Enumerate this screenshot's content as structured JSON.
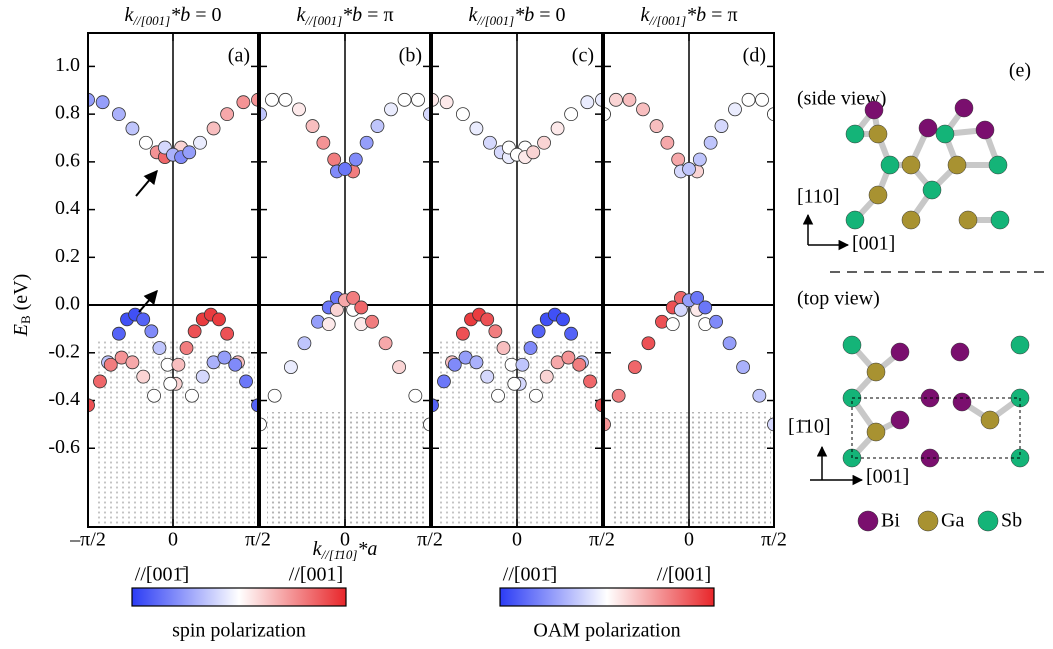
{
  "chart_data": [
    {
      "type": "scatter",
      "label": "(a)",
      "title": {
        "k": "k",
        "sub": "//[001]",
        "star": "*b",
        "eq": "= 0"
      },
      "colorbar": 0,
      "xlim": [
        -1.5708,
        1.5708
      ],
      "xticks": [
        {
          "value": -1.5708,
          "label": "–π/2"
        },
        0,
        {
          "value": 1.5708,
          "label": "π/2"
        }
      ],
      "ylim": [
        -0.93,
        1.14
      ],
      "yticks": [
        -0.6,
        -0.4,
        -0.2,
        {
          "value": 0,
          "label": "0.0"
        },
        0.2,
        0.4,
        0.6,
        0.8,
        {
          "value": 1,
          "label": "1.0"
        }
      ],
      "bands": [
        {
          "x": [
            -1.57,
            -1.3,
            -1.0,
            -0.75,
            -0.5,
            -0.3,
            -0.15,
            0,
            0.15
          ],
          "y": [
            0.86,
            0.85,
            0.8,
            0.74,
            0.68,
            0.64,
            0.62,
            0.63,
            0.66
          ],
          "p": [
            -0.5,
            -0.5,
            -0.4,
            -0.3,
            0,
            0.5,
            0.7,
            0.4,
            0.2
          ]
        },
        {
          "x": [
            -0.15,
            0,
            0.15,
            0.3,
            0.5,
            0.75,
            1.0,
            1.3,
            1.57
          ],
          "y": [
            0.66,
            0.63,
            0.62,
            0.64,
            0.68,
            0.74,
            0.8,
            0.85,
            0.86
          ],
          "p": [
            -0.2,
            -0.4,
            -0.6,
            -0.5,
            -0.1,
            0.3,
            0.4,
            0.5,
            0.5
          ]
        },
        {
          "x": [
            -1.2,
            -1.0,
            -0.85,
            -0.7,
            -0.55,
            -0.4,
            -0.25,
            -0.1,
            0.05
          ],
          "y": [
            -0.24,
            -0.12,
            -0.06,
            -0.04,
            -0.06,
            -0.11,
            -0.18,
            -0.25,
            -0.33
          ],
          "p": [
            -0.3,
            -0.8,
            -0.9,
            -0.9,
            -0.8,
            -0.6,
            -0.3,
            0,
            0.2
          ]
        },
        {
          "x": [
            -0.05,
            0.1,
            0.25,
            0.4,
            0.55,
            0.7,
            0.85,
            1.0,
            1.2
          ],
          "y": [
            -0.33,
            -0.25,
            -0.18,
            -0.11,
            -0.06,
            -0.04,
            -0.06,
            -0.12,
            -0.24
          ],
          "p": [
            0,
            0.3,
            0.6,
            0.8,
            0.9,
            0.9,
            0.9,
            0.8,
            0.3
          ]
        },
        {
          "x": [
            -1.57,
            -1.35,
            -1.15,
            -0.95,
            -0.75,
            -0.55,
            -0.35
          ],
          "y": [
            -0.42,
            -0.32,
            -0.25,
            -0.22,
            -0.24,
            -0.3,
            -0.38
          ],
          "p": [
            0.8,
            0.7,
            0.6,
            0.5,
            0.4,
            0.2,
            0
          ]
        },
        {
          "x": [
            0.35,
            0.55,
            0.75,
            0.95,
            1.15,
            1.35,
            1.57
          ],
          "y": [
            -0.38,
            -0.3,
            -0.24,
            -0.22,
            -0.25,
            -0.32,
            -0.42
          ],
          "p": [
            0,
            -0.2,
            -0.4,
            -0.5,
            -0.6,
            -0.7,
            -0.8
          ]
        }
      ]
    },
    {
      "type": "scatter",
      "label": "(b)",
      "title": {
        "k": "k",
        "sub": "//[001]",
        "star": "*b",
        "eq": "= π"
      },
      "colorbar": 0,
      "xlim": [
        -1.5708,
        1.5708
      ],
      "xticks": [
        0,
        {
          "value": 1.5708,
          "label": "π/2"
        }
      ],
      "ylim": [
        -0.93,
        1.14
      ],
      "yticks": [
        -0.6,
        -0.4,
        -0.2,
        0,
        0.2,
        0.4,
        0.6,
        0.8,
        1
      ],
      "bands": [
        {
          "x": [
            -1.57,
            -1.35,
            -1.1,
            -0.85,
            -0.6,
            -0.4,
            -0.2,
            0,
            0.15
          ],
          "y": [
            0.8,
            0.86,
            0.86,
            0.82,
            0.75,
            0.68,
            0.61,
            0.57,
            0.56
          ],
          "p": [
            -0.3,
            0,
            0,
            0.1,
            0.3,
            0.5,
            0.6,
            0.7,
            0.6
          ]
        },
        {
          "x": [
            -0.15,
            0,
            0.2,
            0.4,
            0.6,
            0.85,
            1.1,
            1.35,
            1.57
          ],
          "y": [
            0.56,
            0.57,
            0.61,
            0.68,
            0.75,
            0.82,
            0.86,
            0.86,
            0.8
          ],
          "p": [
            -0.6,
            -0.7,
            -0.6,
            -0.5,
            -0.3,
            -0.1,
            0,
            0,
            -0.2
          ]
        },
        {
          "x": [
            -1.57,
            -1.3,
            -1.0,
            -0.75,
            -0.5,
            -0.3,
            -0.15,
            0,
            0.15,
            0.3
          ],
          "y": [
            -0.5,
            -0.38,
            -0.26,
            -0.16,
            -0.07,
            -0.01,
            0.03,
            0.02,
            -0.02,
            -0.08
          ],
          "p": [
            0,
            0,
            -0.1,
            -0.3,
            -0.5,
            -0.7,
            -0.7,
            -0.3,
            0,
            0.1
          ]
        },
        {
          "x": [
            -0.3,
            -0.15,
            0,
            0.15,
            0.3,
            0.5,
            0.75,
            1.0,
            1.3,
            1.57
          ],
          "y": [
            -0.08,
            -0.02,
            0.02,
            0.03,
            -0.01,
            -0.07,
            -0.16,
            -0.26,
            -0.38,
            -0.5
          ],
          "p": [
            0.1,
            0.2,
            0.4,
            0.6,
            0.7,
            0.6,
            0.4,
            0.2,
            0,
            0
          ]
        }
      ]
    },
    {
      "type": "scatter",
      "label": "(c)",
      "title": {
        "k": "k",
        "sub": "//[001]",
        "star": "*b",
        "eq": "= 0"
      },
      "colorbar": 1,
      "xlim": [
        -1.5708,
        1.5708
      ],
      "xticks": [
        0,
        {
          "value": 1.5708,
          "label": "π/2"
        }
      ],
      "ylim": [
        -0.93,
        1.14
      ],
      "yticks": [
        -0.6,
        -0.4,
        -0.2,
        0,
        0.2,
        0.4,
        0.6,
        0.8,
        1
      ],
      "bands": [
        {
          "x": [
            -1.57,
            -1.3,
            -1.0,
            -0.75,
            -0.5,
            -0.3,
            -0.15,
            0,
            0.15
          ],
          "y": [
            0.86,
            0.85,
            0.8,
            0.74,
            0.68,
            0.64,
            0.62,
            0.63,
            0.66
          ],
          "p": [
            0.1,
            0.1,
            0,
            -0.1,
            -0.2,
            -0.2,
            -0.1,
            0,
            0
          ]
        },
        {
          "x": [
            -0.15,
            0,
            0.15,
            0.3,
            0.5,
            0.75,
            1.0,
            1.3,
            1.57
          ],
          "y": [
            0.66,
            0.63,
            0.62,
            0.64,
            0.68,
            0.74,
            0.8,
            0.85,
            0.86
          ],
          "p": [
            0,
            0,
            0.1,
            0.2,
            0.2,
            0.1,
            0,
            -0.1,
            -0.1
          ]
        },
        {
          "x": [
            -1.2,
            -1.0,
            -0.85,
            -0.7,
            -0.55,
            -0.4,
            -0.25,
            -0.1,
            0.05
          ],
          "y": [
            -0.24,
            -0.12,
            -0.06,
            -0.04,
            -0.06,
            -0.11,
            -0.18,
            -0.25,
            -0.33
          ],
          "p": [
            0.3,
            0.8,
            0.9,
            0.9,
            0.8,
            0.6,
            0.3,
            0,
            -0.2
          ]
        },
        {
          "x": [
            -0.05,
            0.1,
            0.25,
            0.4,
            0.55,
            0.7,
            0.85,
            1.0,
            1.2
          ],
          "y": [
            -0.33,
            -0.25,
            -0.18,
            -0.11,
            -0.06,
            -0.04,
            -0.06,
            -0.12,
            -0.24
          ],
          "p": [
            0,
            -0.3,
            -0.6,
            -0.8,
            -0.9,
            -0.9,
            -0.9,
            -0.8,
            -0.3
          ]
        },
        {
          "x": [
            -1.57,
            -1.35,
            -1.15,
            -0.95,
            -0.75,
            -0.55,
            -0.35
          ],
          "y": [
            -0.42,
            -0.32,
            -0.25,
            -0.22,
            -0.24,
            -0.3,
            -0.38
          ],
          "p": [
            -0.8,
            -0.7,
            -0.6,
            -0.5,
            -0.4,
            -0.2,
            0
          ]
        },
        {
          "x": [
            0.35,
            0.55,
            0.75,
            0.95,
            1.15,
            1.35,
            1.57
          ],
          "y": [
            -0.38,
            -0.3,
            -0.24,
            -0.22,
            -0.25,
            -0.32,
            -0.42
          ],
          "p": [
            0,
            0.2,
            0.4,
            0.5,
            0.6,
            0.7,
            0.8
          ]
        }
      ]
    },
    {
      "type": "scatter",
      "label": "(d)",
      "title": {
        "k": "k",
        "sub": "//[001]",
        "star": "*b",
        "eq": "= π"
      },
      "colorbar": 1,
      "xlim": [
        -1.5708,
        1.5708
      ],
      "xticks": [
        0,
        {
          "value": 1.5708,
          "label": "π/2"
        }
      ],
      "ylim": [
        -0.93,
        1.14
      ],
      "yticks": [
        -0.6,
        -0.4,
        -0.2,
        0,
        0.2,
        0.4,
        0.6,
        0.8,
        1
      ],
      "bands": [
        {
          "x": [
            -1.57,
            -1.35,
            -1.1,
            -0.85,
            -0.6,
            -0.4,
            -0.2,
            0,
            0.15
          ],
          "y": [
            0.8,
            0.86,
            0.86,
            0.82,
            0.75,
            0.68,
            0.61,
            0.57,
            0.56
          ],
          "p": [
            0,
            0.2,
            0.3,
            0.3,
            0.3,
            0.4,
            0.4,
            0.3,
            0.2
          ]
        },
        {
          "x": [
            -0.15,
            0,
            0.2,
            0.4,
            0.6,
            0.85,
            1.1,
            1.35,
            1.57
          ],
          "y": [
            0.56,
            0.57,
            0.61,
            0.68,
            0.75,
            0.82,
            0.86,
            0.86,
            0.8
          ],
          "p": [
            -0.2,
            -0.3,
            -0.3,
            -0.3,
            -0.2,
            -0.1,
            0,
            0,
            0
          ]
        },
        {
          "x": [
            -1.57,
            -1.3,
            -1.0,
            -0.75,
            -0.5,
            -0.3,
            -0.15,
            0,
            0.15,
            0.3
          ],
          "y": [
            -0.5,
            -0.38,
            -0.26,
            -0.16,
            -0.07,
            -0.01,
            0.03,
            0.02,
            -0.02,
            -0.08
          ],
          "p": [
            0.5,
            0.6,
            0.7,
            0.8,
            0.8,
            0.8,
            0.7,
            0.4,
            0.1,
            0
          ]
        },
        {
          "x": [
            -0.3,
            -0.15,
            0,
            0.15,
            0.3,
            0.5,
            0.75,
            1.0,
            1.3,
            1.57
          ],
          "y": [
            -0.08,
            -0.02,
            0.02,
            0.03,
            -0.01,
            -0.07,
            -0.16,
            -0.26,
            -0.38,
            -0.5
          ],
          "p": [
            0,
            -0.2,
            -0.5,
            -0.7,
            -0.7,
            -0.6,
            -0.5,
            -0.4,
            -0.3,
            -0.2
          ]
        }
      ]
    }
  ],
  "axes": {
    "ylabel": {
      "main": "E",
      "sub": "B",
      "unit": " (eV)"
    },
    "xlabel": {
      "main": "k",
      "sub": "//[1̄10]",
      "rest": "*a"
    }
  },
  "colorbars": [
    {
      "left": "//[001̄]",
      "right": "//[001]",
      "label": "spin polarization",
      "range": [
        -1,
        1
      ],
      "colors": [
        "#2b3cf5",
        "#ffffff",
        "#e8262a"
      ]
    },
    {
      "left": "//[001̄]",
      "right": "//[001]",
      "label": "OAM polarization",
      "range": [
        -1,
        1
      ],
      "colors": [
        "#2b3cf5",
        "#ffffff",
        "#e8262a"
      ]
    }
  ],
  "structure": {
    "label": "(e)",
    "side": "(side view)",
    "top": "(top view)",
    "side_up": "[110]",
    "side_right": "[001]",
    "top_up": "[1̄10]",
    "top_right": "[001]",
    "legend": [
      {
        "name": "Bi",
        "color": "#7a0f6e"
      },
      {
        "name": "Ga",
        "color": "#a89231"
      },
      {
        "name": "Sb",
        "color": "#14b478"
      }
    ]
  }
}
